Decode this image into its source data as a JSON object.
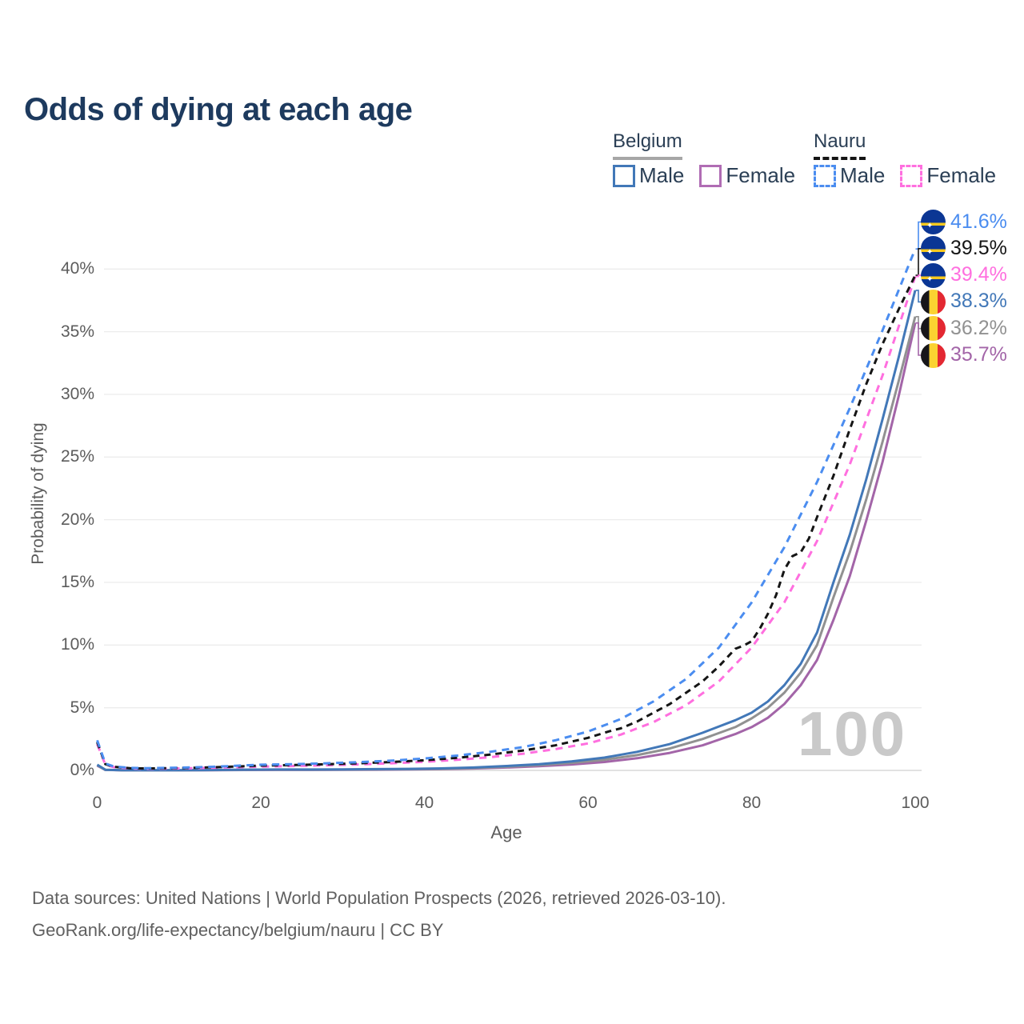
{
  "title": "Odds of dying at each age",
  "watermark_age": "100",
  "source_line1": "Data sources: United Nations | World Population Prospects (2026, retrieved 2026-03-10).",
  "source_line2": "GeoRank.org/life-expectancy/belgium/nauru | CC BY",
  "legend": {
    "groups": [
      {
        "country": "Belgium",
        "style": "solid-gray-underline",
        "items": [
          {
            "label": "Male",
            "color": "#4278b8"
          },
          {
            "label": "Female",
            "color": "#b06cb4"
          }
        ]
      },
      {
        "country": "Nauru",
        "style": "dashed-black-underline",
        "items": [
          {
            "label": "Male",
            "color": "#4b8df0"
          },
          {
            "label": "Female",
            "color": "#ff6fdf"
          }
        ]
      }
    ]
  },
  "chart_data": {
    "type": "line",
    "title": "Odds of dying at each age",
    "xlabel": "Age",
    "ylabel": "Probability of dying",
    "xlim": [
      0,
      100
    ],
    "ylim_percent": [
      0,
      40
    ],
    "xticks": [
      0,
      20,
      40,
      60,
      80,
      100
    ],
    "ytick_percents": [
      0,
      5,
      10,
      15,
      20,
      25,
      30,
      35,
      40
    ],
    "ytick_labels": [
      "0%",
      "5%",
      "10%",
      "15%",
      "20%",
      "25%",
      "30%",
      "35%",
      "40%"
    ],
    "grid": "horizontal",
    "legend_position": "top-right",
    "x_unit": "years of age",
    "y_unit": "percent probability of dying at that age",
    "series": [
      {
        "name": "Belgium Female",
        "country": "belgium",
        "sex": "female",
        "color": "#a365a8",
        "dash": null,
        "end_label": "35.7%",
        "end_value": 35.7,
        "points": [
          [
            0,
            0.38
          ],
          [
            1,
            0.04
          ],
          [
            3,
            0.015
          ],
          [
            5,
            0.01
          ],
          [
            10,
            0.01
          ],
          [
            14,
            0.02
          ],
          [
            18,
            0.035
          ],
          [
            22,
            0.04
          ],
          [
            26,
            0.04
          ],
          [
            30,
            0.05
          ],
          [
            34,
            0.06
          ],
          [
            38,
            0.08
          ],
          [
            42,
            0.1
          ],
          [
            46,
            0.15
          ],
          [
            50,
            0.23
          ],
          [
            54,
            0.33
          ],
          [
            58,
            0.47
          ],
          [
            62,
            0.67
          ],
          [
            66,
            0.97
          ],
          [
            70,
            1.4
          ],
          [
            74,
            2.0
          ],
          [
            78,
            2.9
          ],
          [
            80,
            3.45
          ],
          [
            82,
            4.2
          ],
          [
            84,
            5.3
          ],
          [
            86,
            6.8
          ],
          [
            88,
            8.8
          ],
          [
            90,
            12.0
          ],
          [
            92,
            15.5
          ],
          [
            94,
            19.9
          ],
          [
            96,
            24.6
          ],
          [
            98,
            29.9
          ],
          [
            100,
            35.7
          ]
        ]
      },
      {
        "name": "Belgium Both sexes",
        "country": "belgium",
        "sex": "both",
        "color": "#919191",
        "dash": null,
        "end_label": "36.2%",
        "end_value": 36.2,
        "points": [
          [
            0,
            0.42
          ],
          [
            1,
            0.045
          ],
          [
            3,
            0.018
          ],
          [
            5,
            0.012
          ],
          [
            10,
            0.012
          ],
          [
            14,
            0.025
          ],
          [
            18,
            0.05
          ],
          [
            22,
            0.055
          ],
          [
            26,
            0.055
          ],
          [
            30,
            0.065
          ],
          [
            34,
            0.08
          ],
          [
            38,
            0.1
          ],
          [
            42,
            0.13
          ],
          [
            46,
            0.19
          ],
          [
            50,
            0.29
          ],
          [
            54,
            0.42
          ],
          [
            58,
            0.6
          ],
          [
            62,
            0.85
          ],
          [
            66,
            1.22
          ],
          [
            70,
            1.75
          ],
          [
            74,
            2.5
          ],
          [
            78,
            3.45
          ],
          [
            80,
            4.15
          ],
          [
            82,
            5.0
          ],
          [
            84,
            6.2
          ],
          [
            86,
            7.8
          ],
          [
            88,
            10.0
          ],
          [
            90,
            13.8
          ],
          [
            92,
            17.4
          ],
          [
            94,
            21.6
          ],
          [
            96,
            26.2
          ],
          [
            98,
            31.1
          ],
          [
            100,
            36.2
          ]
        ]
      },
      {
        "name": "Belgium Male",
        "country": "belgium",
        "sex": "male",
        "color": "#4278b8",
        "dash": null,
        "end_label": "38.3%",
        "end_value": 38.3,
        "points": [
          [
            0,
            0.45
          ],
          [
            1,
            0.05
          ],
          [
            3,
            0.02
          ],
          [
            5,
            0.015
          ],
          [
            10,
            0.015
          ],
          [
            14,
            0.03
          ],
          [
            18,
            0.06
          ],
          [
            22,
            0.07
          ],
          [
            26,
            0.07
          ],
          [
            30,
            0.08
          ],
          [
            34,
            0.1
          ],
          [
            38,
            0.12
          ],
          [
            42,
            0.16
          ],
          [
            46,
            0.23
          ],
          [
            50,
            0.35
          ],
          [
            54,
            0.5
          ],
          [
            58,
            0.72
          ],
          [
            62,
            1.02
          ],
          [
            66,
            1.48
          ],
          [
            70,
            2.1
          ],
          [
            74,
            3.0
          ],
          [
            78,
            4.0
          ],
          [
            80,
            4.6
          ],
          [
            82,
            5.5
          ],
          [
            84,
            6.8
          ],
          [
            86,
            8.5
          ],
          [
            88,
            11.0
          ],
          [
            90,
            15.0
          ],
          [
            92,
            18.8
          ],
          [
            94,
            23.2
          ],
          [
            96,
            28.0
          ],
          [
            98,
            33.0
          ],
          [
            100,
            38.3
          ]
        ]
      },
      {
        "name": "Nauru Female",
        "country": "nauru",
        "sex": "female",
        "color": "#ff6fdf",
        "dash": "9 7",
        "end_label": "39.4%",
        "end_value": 39.4,
        "points": [
          [
            0,
            2.1
          ],
          [
            1,
            0.45
          ],
          [
            2,
            0.26
          ],
          [
            4,
            0.15
          ],
          [
            6,
            0.13
          ],
          [
            8,
            0.14
          ],
          [
            10,
            0.16
          ],
          [
            12,
            0.18
          ],
          [
            14,
            0.21
          ],
          [
            16,
            0.24
          ],
          [
            18,
            0.27
          ],
          [
            20,
            0.3
          ],
          [
            24,
            0.35
          ],
          [
            28,
            0.41
          ],
          [
            32,
            0.48
          ],
          [
            36,
            0.57
          ],
          [
            40,
            0.68
          ],
          [
            44,
            0.84
          ],
          [
            48,
            1.05
          ],
          [
            52,
            1.32
          ],
          [
            56,
            1.7
          ],
          [
            60,
            2.15
          ],
          [
            64,
            2.85
          ],
          [
            68,
            3.85
          ],
          [
            72,
            5.2
          ],
          [
            76,
            7.1
          ],
          [
            80,
            9.8
          ],
          [
            84,
            13.4
          ],
          [
            88,
            18.3
          ],
          [
            92,
            24.4
          ],
          [
            96,
            31.5
          ],
          [
            100,
            39.4
          ]
        ]
      },
      {
        "name": "Nauru Both sexes",
        "country": "nauru",
        "sex": "both",
        "color": "#151515",
        "dash": "8 6",
        "end_label": "39.5%",
        "end_value": 39.5,
        "points": [
          [
            0,
            2.25
          ],
          [
            1,
            0.5
          ],
          [
            2,
            0.29
          ],
          [
            4,
            0.17
          ],
          [
            6,
            0.15
          ],
          [
            8,
            0.17
          ],
          [
            10,
            0.19
          ],
          [
            12,
            0.21
          ],
          [
            14,
            0.25
          ],
          [
            16,
            0.29
          ],
          [
            18,
            0.33
          ],
          [
            20,
            0.38
          ],
          [
            24,
            0.43
          ],
          [
            28,
            0.49
          ],
          [
            32,
            0.57
          ],
          [
            36,
            0.67
          ],
          [
            40,
            0.81
          ],
          [
            44,
            1.0
          ],
          [
            48,
            1.26
          ],
          [
            52,
            1.58
          ],
          [
            56,
            2.0
          ],
          [
            60,
            2.6
          ],
          [
            63,
            3.2
          ],
          [
            64,
            3.35
          ],
          [
            66,
            3.9
          ],
          [
            68,
            4.6
          ],
          [
            70,
            5.3
          ],
          [
            72,
            6.2
          ],
          [
            74,
            7.1
          ],
          [
            76,
            8.3
          ],
          [
            77,
            9.0
          ],
          [
            78,
            9.7
          ],
          [
            79,
            9.95
          ],
          [
            80,
            10.3
          ],
          [
            81,
            11.3
          ],
          [
            82,
            12.5
          ],
          [
            83,
            14.0
          ],
          [
            84,
            16.0
          ],
          [
            85,
            17.1
          ],
          [
            86,
            17.4
          ],
          [
            87,
            18.5
          ],
          [
            88,
            20.2
          ],
          [
            90,
            23.5
          ],
          [
            92,
            27.2
          ],
          [
            94,
            30.8
          ],
          [
            96,
            34.0
          ],
          [
            98,
            36.8
          ],
          [
            100,
            39.5
          ]
        ]
      },
      {
        "name": "Nauru Male",
        "country": "nauru",
        "sex": "male",
        "color": "#4b8df0",
        "dash": "9 7",
        "end_label": "41.6%",
        "end_value": 41.6,
        "points": [
          [
            0,
            2.4
          ],
          [
            1,
            0.55
          ],
          [
            2,
            0.32
          ],
          [
            4,
            0.2
          ],
          [
            6,
            0.18
          ],
          [
            8,
            0.2
          ],
          [
            10,
            0.22
          ],
          [
            12,
            0.25
          ],
          [
            14,
            0.29
          ],
          [
            16,
            0.34
          ],
          [
            18,
            0.4
          ],
          [
            20,
            0.45
          ],
          [
            24,
            0.5
          ],
          [
            28,
            0.57
          ],
          [
            32,
            0.66
          ],
          [
            36,
            0.78
          ],
          [
            40,
            0.95
          ],
          [
            44,
            1.18
          ],
          [
            48,
            1.48
          ],
          [
            52,
            1.85
          ],
          [
            56,
            2.4
          ],
          [
            60,
            3.1
          ],
          [
            64,
            4.1
          ],
          [
            68,
            5.5
          ],
          [
            72,
            7.3
          ],
          [
            76,
            9.8
          ],
          [
            80,
            13.4
          ],
          [
            84,
            17.8
          ],
          [
            88,
            23.0
          ],
          [
            92,
            28.9
          ],
          [
            96,
            35.1
          ],
          [
            100,
            41.6
          ]
        ]
      }
    ]
  }
}
